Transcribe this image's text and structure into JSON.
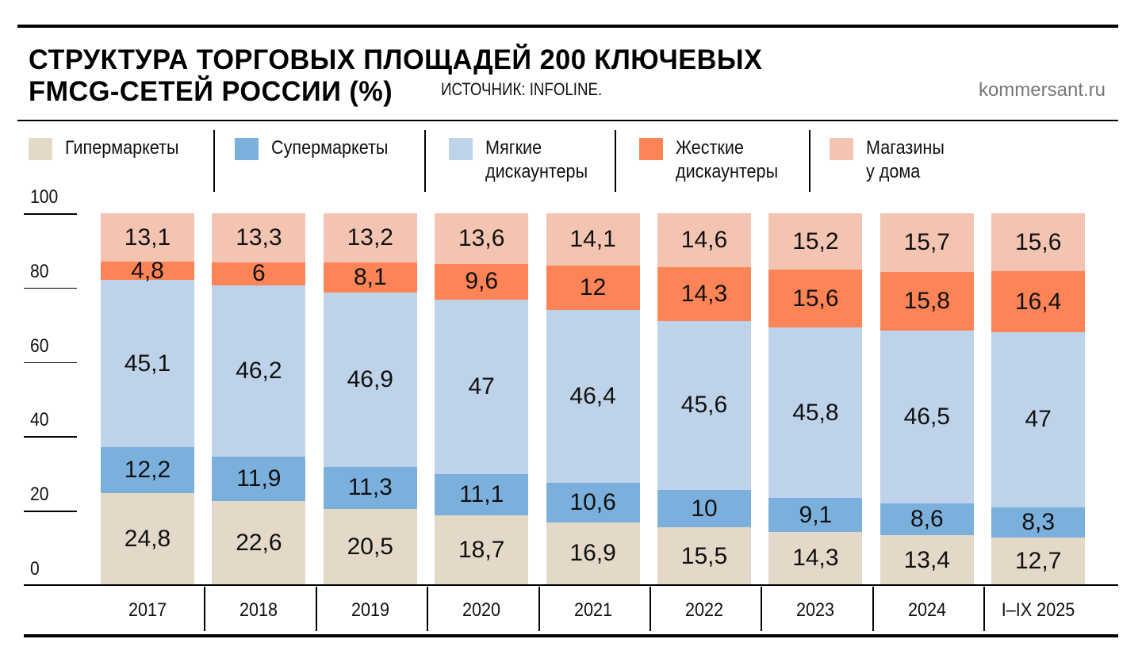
{
  "title_line1": "СТРУКТУРА ТОРГОВЫХ ПЛОЩАДЕЙ 200 КЛЮЧЕВЫХ",
  "title_line2": "FMCG-СЕТЕЙ РОССИИ (%)",
  "source": "ИСТОЧНИК: INFOLINE.",
  "site": "kommersant.ru",
  "chart_data": {
    "type": "bar",
    "stacked": true,
    "title": "СТРУКТУРА ТОРГОВЫХ ПЛОЩАДЕЙ 200 КЛЮЧЕВЫХ FMCG-СЕТЕЙ РОССИИ (%)",
    "categories": [
      "2017",
      "2018",
      "2019",
      "2020",
      "2021",
      "2022",
      "2023",
      "2024",
      "I–IX 2025"
    ],
    "ylim": [
      0,
      100
    ],
    "yticks": [
      "0",
      "20",
      "40",
      "60",
      "80",
      "100"
    ],
    "legend_position": "top",
    "series": [
      {
        "name": "Гипермаркеты",
        "label": "Гипермаркеты",
        "color": "#e4d9c8",
        "values": [
          24.8,
          22.6,
          20.5,
          18.7,
          16.9,
          15.5,
          14.3,
          13.4,
          12.7
        ],
        "labels": [
          "24,8",
          "22,6",
          "20,5",
          "18,7",
          "16,9",
          "15,5",
          "14,3",
          "13,4",
          "12,7"
        ]
      },
      {
        "name": "Супермаркеты",
        "label": "Супермаркеты",
        "color": "#7bb0dd",
        "values": [
          12.2,
          11.9,
          11.3,
          11.1,
          10.6,
          10,
          9.1,
          8.6,
          8.3
        ],
        "labels": [
          "12,2",
          "11,9",
          "11,3",
          "11,1",
          "10,6",
          "10",
          "9,1",
          "8,6",
          "8,3"
        ]
      },
      {
        "name": "Мягкие дискаунтеры",
        "label": "Мягкие\nдискаунтеры",
        "color": "#bed3e9",
        "values": [
          45.1,
          46.2,
          46.9,
          47,
          46.4,
          45.6,
          45.8,
          46.5,
          47
        ],
        "labels": [
          "45,1",
          "46,2",
          "46,9",
          "47",
          "46,4",
          "45,6",
          "45,8",
          "46,5",
          "47"
        ]
      },
      {
        "name": "Жесткие дискаунтеры",
        "label": "Жесткие\nдискаунтеры",
        "color": "#fd8456",
        "values": [
          4.8,
          6,
          8.1,
          9.6,
          12,
          14.3,
          15.6,
          15.8,
          16.4
        ],
        "labels": [
          "4,8",
          "6",
          "8,1",
          "9,6",
          "12",
          "14,3",
          "15,6",
          "15,8",
          "16,4"
        ]
      },
      {
        "name": "Магазины у дома",
        "label": "Магазины\nу дома",
        "color": "#f4c4b2",
        "values": [
          13.1,
          13.3,
          13.2,
          13.6,
          14.1,
          14.6,
          15.2,
          15.7,
          15.6
        ],
        "labels": [
          "13,1",
          "13,3",
          "13,2",
          "13,6",
          "14,1",
          "14,6",
          "15,2",
          "15,7",
          "15,6"
        ]
      }
    ]
  }
}
